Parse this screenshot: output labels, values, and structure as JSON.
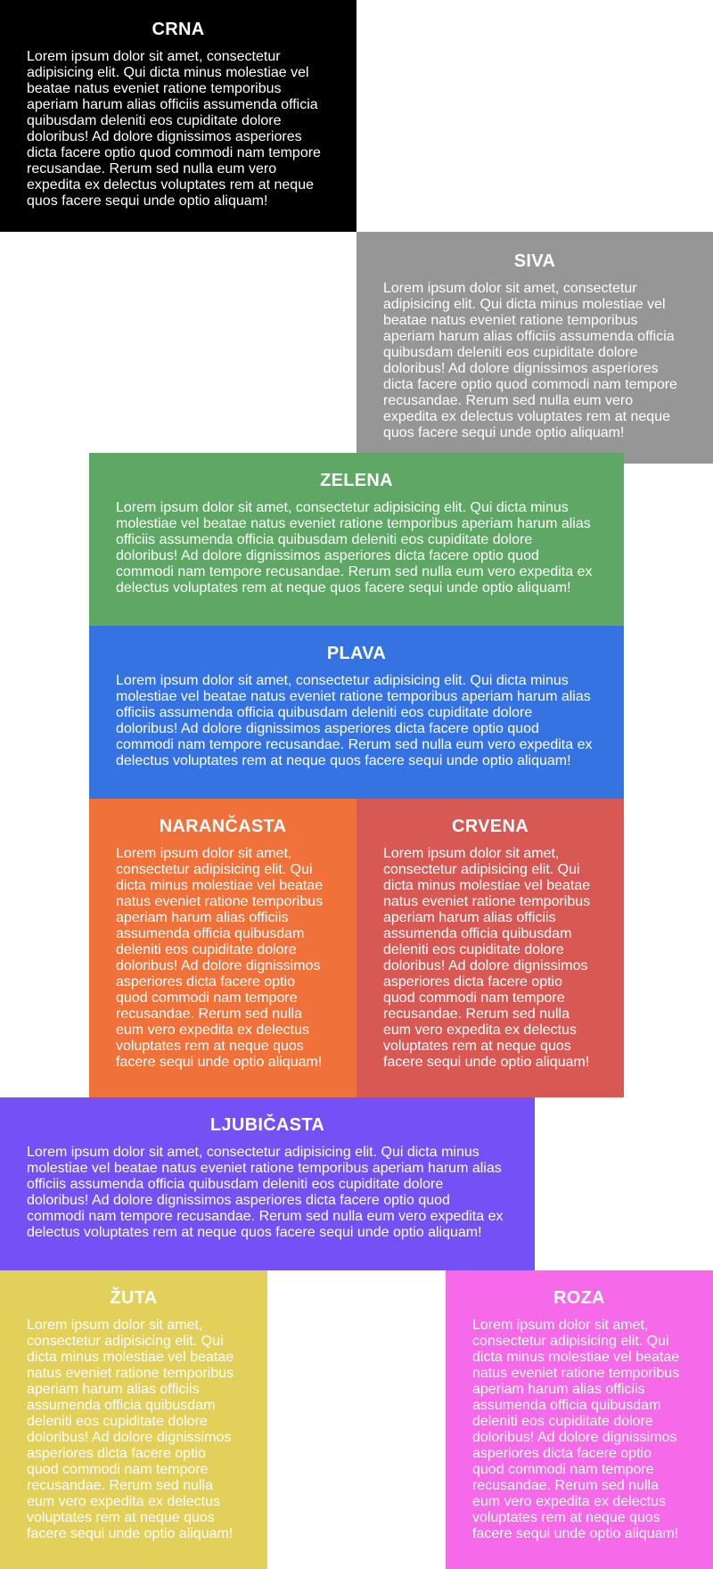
{
  "blocks": {
    "crna": {
      "title": "CRNA",
      "text": "Lorem ipsum dolor sit amet, consectetur adipisicing elit. Qui dicta minus molestiae vel beatae natus eveniet ratione temporibus aperiam harum alias officiis assumenda officia quibusdam deleniti eos cupiditate dolore doloribus! Ad dolore dignissimos asperiores dicta facere optio quod commodi nam tempore recusandae. Rerum sed nulla eum vero expedita ex delectus voluptates rem at neque quos facere sequi unde optio aliquam!",
      "color": "#000000"
    },
    "siva": {
      "title": "SIVA",
      "text": "Lorem ipsum dolor sit amet, consectetur adipisicing elit. Qui dicta minus molestiae vel beatae natus eveniet ratione temporibus aperiam harum alias officiis assumenda officia quibusdam deleniti eos cupiditate dolore doloribus! Ad dolore dignissimos asperiores dicta facere optio quod commodi nam tempore recusandae. Rerum sed nulla eum vero expedita ex delectus voluptates rem at neque quos facere sequi unde optio aliquam!",
      "color": "#969696"
    },
    "zelena": {
      "title": "ZELENA",
      "text": "Lorem ipsum dolor sit amet, consectetur adipisicing elit. Qui dicta minus molestiae vel beatae natus eveniet ratione temporibus aperiam harum alias officiis assumenda officia quibusdam deleniti eos cupiditate dolore doloribus! Ad dolore dignissimos asperiores dicta facere optio quod commodi nam tempore recusandae. Rerum sed nulla eum vero expedita ex delectus voluptates rem at neque quos facere sequi unde optio aliquam!",
      "color": "#5ea765"
    },
    "plava": {
      "title": "PLAVA",
      "text": "Lorem ipsum dolor sit amet, consectetur adipisicing elit. Qui dicta minus molestiae vel beatae natus eveniet ratione temporibus aperiam harum alias officiis assumenda officia quibusdam deleniti eos cupiditate dolore doloribus! Ad dolore dignissimos asperiores dicta facere optio quod commodi nam tempore recusandae. Rerum sed nulla eum vero expedita ex delectus voluptates rem at neque quos facere sequi unde optio aliquam!",
      "color": "#3573e2"
    },
    "narancasta": {
      "title": "NARANČASTA",
      "text": "Lorem ipsum dolor sit amet, consectetur adipisicing elit. Qui dicta minus molestiae vel beatae natus eveniet ratione temporibus aperiam harum alias officiis assumenda officia quibusdam deleniti eos cupiditate dolore doloribus! Ad dolore dignissimos asperiores dicta facere optio quod commodi nam tempore recusandae. Rerum sed nulla eum vero expedita ex delectus voluptates rem at neque quos facere sequi unde optio aliquam!",
      "color": "#f0723a"
    },
    "crvena": {
      "title": "CRVENA",
      "text": "Lorem ipsum dolor sit amet, consectetur adipisicing elit. Qui dicta minus molestiae vel beatae natus eveniet ratione temporibus aperiam harum alias officiis assumenda officia quibusdam deleniti eos cupiditate dolore doloribus! Ad dolore dignissimos asperiores dicta facere optio quod commodi nam tempore recusandae. Rerum sed nulla eum vero expedita ex delectus voluptates rem at neque quos facere sequi unde optio aliquam!",
      "color": "#d85954"
    },
    "ljubicasta": {
      "title": "LJUBIČASTA",
      "text": "Lorem ipsum dolor sit amet, consectetur adipisicing elit. Qui dicta minus molestiae vel beatae natus eveniet ratione temporibus aperiam harum alias officiis assumenda officia quibusdam deleniti eos cupiditate dolore doloribus! Ad dolore dignissimos asperiores dicta facere optio quod commodi nam tempore recusandae. Rerum sed nulla eum vero expedita ex delectus voluptates rem at neque quos facere sequi unde optio aliquam!",
      "color": "#7451f5"
    },
    "zuta": {
      "title": "ŽUTA",
      "text": "Lorem ipsum dolor sit amet, consectetur adipisicing elit. Qui dicta minus molestiae vel beatae natus eveniet ratione temporibus aperiam harum alias officiis assumenda officia quibusdam deleniti eos cupiditate dolore doloribus! Ad dolore dignissimos asperiores dicta facere optio quod commodi nam tempore recusandae. Rerum sed nulla eum vero expedita ex delectus voluptates rem at neque quos facere sequi unde optio aliquam!",
      "color": "#e3d05a"
    },
    "roza": {
      "title": "ROZA",
      "text": "Lorem ipsum dolor sit amet, consectetur adipisicing elit. Qui dicta minus molestiae vel beatae natus eveniet ratione temporibus aperiam harum alias officiis assumenda officia quibusdam deleniti eos cupiditate dolore doloribus! Ad dolore dignissimos asperiores dicta facere optio quod commodi nam tempore recusandae. Rerum sed nulla eum vero expedita ex delectus voluptates rem at neque quos facere sequi unde optio aliquam!",
      "color": "#f66aea"
    }
  }
}
